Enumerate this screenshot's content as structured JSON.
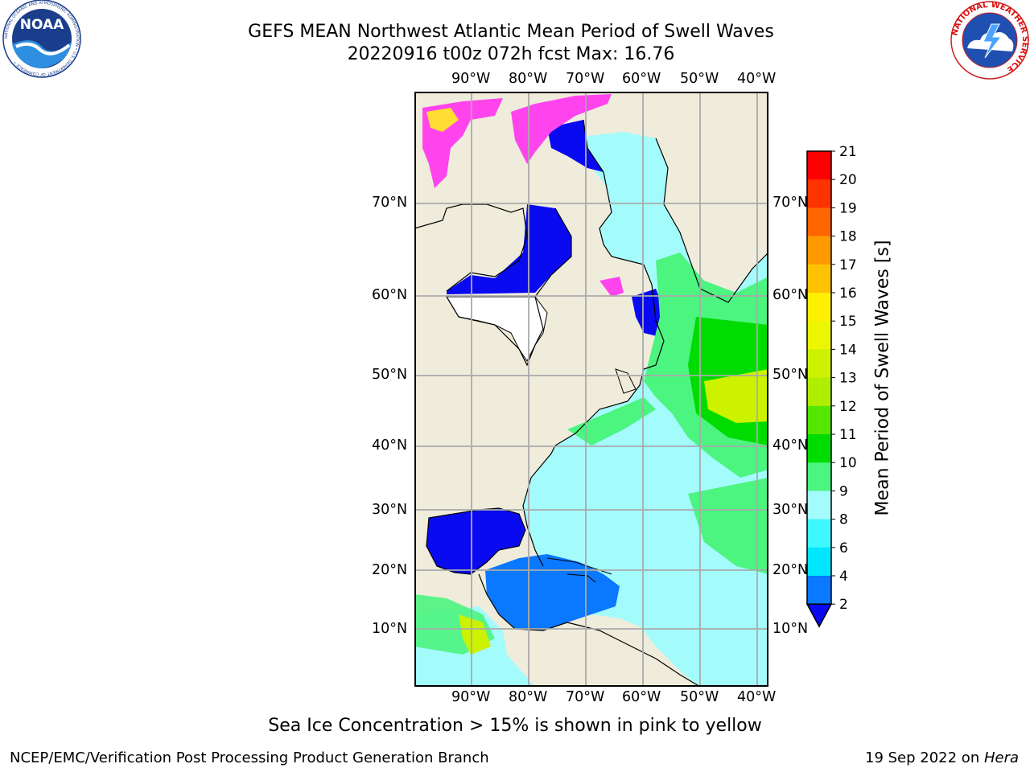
{
  "header": {
    "title_line1": "GEFS MEAN Northwest Atlantic Mean Period of Swell Waves",
    "title_line2": "20220916 t00z 072h fcst   Max: 16.76"
  },
  "map": {
    "lon_labels": [
      "90°W",
      "80°W",
      "70°W",
      "60°W",
      "50°W",
      "40°W"
    ],
    "lat_labels": [
      "70°N",
      "60°N",
      "50°N",
      "40°N",
      "30°N",
      "20°N",
      "10°N"
    ],
    "colors": {
      "land": "#efecdc",
      "frame": "#000000",
      "grid": "#aaaaaa",
      "ice_pink": "#ff44ee",
      "ice_yellow": "#ffdd33"
    }
  },
  "colorbar": {
    "title": "Mean Period of Swell Waves [s]",
    "ticks": [
      "2",
      "4",
      "6",
      "8",
      "9",
      "10",
      "11",
      "12",
      "13",
      "14",
      "15",
      "16",
      "17",
      "18",
      "19",
      "20",
      "21"
    ],
    "colors": [
      "#0a0af0",
      "#0a78ff",
      "#00e6ff",
      "#3ff7ff",
      "#a4fbfb",
      "#4cf480",
      "#00dc00",
      "#55e600",
      "#b0ee00",
      "#ccf200",
      "#ecf600",
      "#ffef00",
      "#ffc200",
      "#ff9900",
      "#ff6600",
      "#ff3300",
      "#ff0000"
    ]
  },
  "caption": "Sea Ice Concentration > 15% is shown in pink to yellow",
  "footer": {
    "left": "NCEP/EMC/Verification Post Processing Product Generation Branch",
    "right_date": "19 Sep 2022 on ",
    "right_host": "Hera"
  },
  "logos": {
    "noaa": {
      "text": "NOAA",
      "ring_text": "NATIONAL OCEANIC AND ATMOSPHERIC ADMINISTRATION • U.S. DEPARTMENT OF COMMERCE •"
    },
    "nws": {
      "ring_text": "NATIONAL WEATHER SERVICE"
    }
  }
}
